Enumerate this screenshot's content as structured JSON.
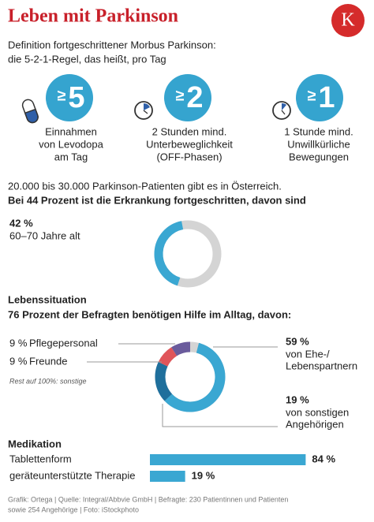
{
  "title": "Leben mit Parkinson",
  "logo": "K",
  "intro": [
    "Definition fortgeschrittener Morbus Parkinson:",
    "die 5-2-1-Regel, das heißt, pro Tag"
  ],
  "rules": [
    {
      "sign": "≥",
      "number": 5,
      "lines": [
        "Einnahmen",
        "von Levodopa",
        "am Tag"
      ]
    },
    {
      "sign": "≥",
      "number": 2,
      "lines": [
        "2 Stunden mind.",
        "Unterbeweglichkeit",
        "(OFF-Phasen)"
      ]
    },
    {
      "sign": "≥",
      "number": 1,
      "lines": [
        "1 Stunde mind.",
        "Unwillkürliche",
        "Bewegungen"
      ]
    }
  ],
  "stats": [
    "20.000 bis 30.000 Parkinson-Patienten gibt es in Österreich.",
    "Bei 44 Prozent ist die Erkrankung fortgeschritten, davon sind"
  ],
  "section_life": [
    "Lebenssituation",
    "76 Prozent der Befragten benötigen Hilfe im Alltag, davon:"
  ],
  "section_med": "Medikation",
  "chart_data": [
    {
      "type": "donut",
      "values": [
        42
      ],
      "value_labels": [
        "42 %"
      ],
      "categories": [
        [
          "60–70 Jahre alt"
        ]
      ],
      "colors": [
        "#3aa7d2"
      ],
      "rest_color": "#d4d4d4"
    },
    {
      "type": "donut",
      "values": [
        59,
        19,
        9,
        9
      ],
      "value_labels": [
        "59 %",
        "19 %",
        "9 %",
        "9 %"
      ],
      "categories": [
        [
          "von Ehe-/",
          "Lebenspartnern"
        ],
        [
          "von sonstigen",
          "Angehörigen"
        ],
        [
          "Freunde"
        ],
        [
          "Pflegepersonal"
        ]
      ],
      "colors": [
        "#3aa7d2",
        "#1f6f9c",
        "#e0555a",
        "#6a5b9c"
      ],
      "rest_color": "#d4d4d4",
      "note": "Rest auf 100%: sonstige"
    },
    {
      "type": "bar",
      "categories": [
        "Tablettenform",
        "geräteunterstützte Therapie"
      ],
      "values": [
        84,
        19
      ],
      "value_labels": [
        "84 %",
        "19 %"
      ],
      "color": "#3aa7d2"
    }
  ],
  "footer": [
    "Grafik: Ortega | Quelle: Integral/Abbvie GmbH | Befragte: 230 Patientinnen und Patienten",
    "sowie 254 Angehörige | Foto: iStockphoto"
  ]
}
